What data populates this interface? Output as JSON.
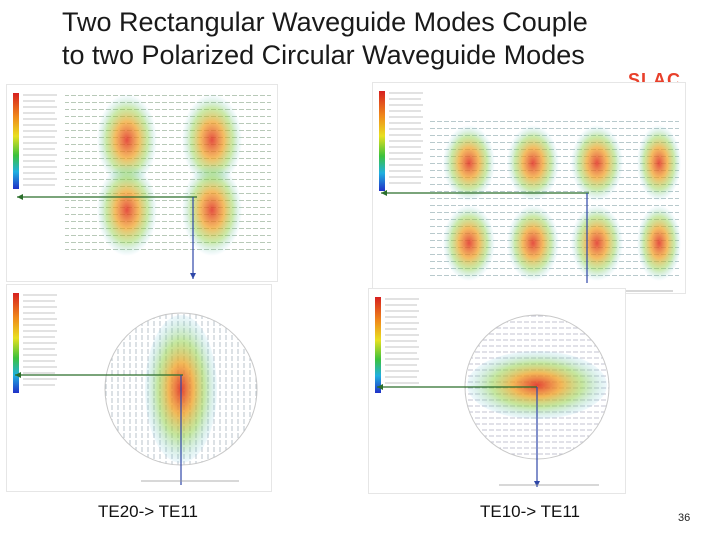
{
  "slide": {
    "title_line1": "Two Rectangular Waveguide Modes Couple",
    "title_line2": "to  two Polarized Circular Waveguide Modes",
    "logo_text": "SLAC",
    "caption_left": "TE20-> TE11",
    "caption_right": "TE10-> TE11",
    "page_number": "36"
  },
  "colors": {
    "title": "#1a1a1a",
    "logo": "#e8402b",
    "arrow_line": "#2b6e2b",
    "axis_line": "#2f47a8"
  },
  "panels": [
    {
      "name": "plot-te20-rectangular",
      "mode": "TE20",
      "shape": "rectangle",
      "fringes": 2
    },
    {
      "name": "plot-te10-rectangular",
      "mode": "TE10",
      "shape": "rectangle",
      "fringes": 4
    },
    {
      "name": "plot-te11-circular-vertical",
      "mode": "TE11",
      "shape": "circle",
      "orientation": "vertical"
    },
    {
      "name": "plot-te11-circular-horizontal",
      "mode": "TE11",
      "shape": "circle",
      "orientation": "horizontal"
    }
  ]
}
